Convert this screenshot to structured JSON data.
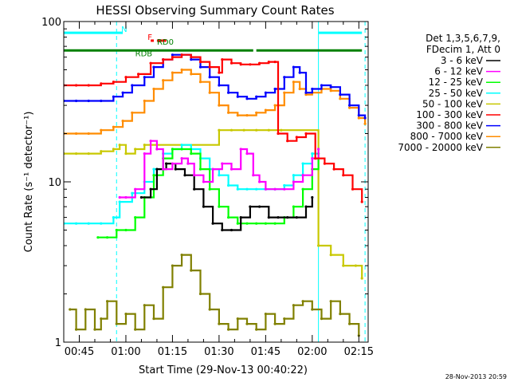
{
  "chart_data": {
    "type": "line",
    "title": "HESSI Observing Summary Count Rates",
    "xlabel": "Start Time (29-Nov-13 00:40:22)",
    "ylabel": "Count Rate (s⁻¹ detector⁻¹)",
    "yscale": "log",
    "ylim": [
      1,
      100
    ],
    "xlim": [
      "00:40",
      "02:18"
    ],
    "x_ticks": [
      "00:45",
      "01:00",
      "01:15",
      "01:30",
      "01:45",
      "02:00",
      "02:15"
    ],
    "y_ticks": [
      "1",
      "10",
      "100"
    ],
    "legend_header": [
      "Det 1,3,5,6,7,9,",
      "FDecim 1, Att 0"
    ],
    "legend_position": "right",
    "timestamp": "28-Nov-2013 20:59",
    "vertical_lines": [
      {
        "time": "00:40",
        "style": "solid",
        "color": "#00ffff"
      },
      {
        "time": "00:57",
        "style": "dashed",
        "color": "#00ffff"
      },
      {
        "time": "02:02",
        "style": "solid",
        "color": "#00ffff"
      },
      {
        "time": "02:17",
        "style": "dashed",
        "color": "#00ffff"
      }
    ],
    "flags": [
      {
        "label": "N",
        "color": "#00ffff",
        "segments": [
          [
            "00:40",
            "00:59"
          ],
          [
            "02:02",
            "02:16"
          ]
        ],
        "y": 85
      },
      {
        "label": "F",
        "color": "#ff0000",
        "segments": [
          [
            "01:08",
            "01:09"
          ],
          [
            "01:10",
            "01:13"
          ]
        ],
        "y": 76
      },
      {
        "label": "RD0",
        "color": "#008000",
        "segments": [
          [
            "00:40",
            "01:41"
          ],
          [
            "01:42",
            "02:16"
          ]
        ],
        "y": 66
      },
      {
        "label": "RDB",
        "color": "#008000",
        "segments": [],
        "y": 60
      },
      {
        "label": "RD0",
        "color": "#008000",
        "segments": [],
        "y": 71
      }
    ],
    "series": [
      {
        "name": "3 - 6 keV",
        "color": "#000000",
        "points": [
          [
            "01:05",
            8
          ],
          [
            "01:08",
            9
          ],
          [
            "01:10",
            12
          ],
          [
            "01:13",
            13
          ],
          [
            "01:16",
            12
          ],
          [
            "01:19",
            11
          ],
          [
            "01:22",
            9
          ],
          [
            "01:25",
            7
          ],
          [
            "01:28",
            5.5
          ],
          [
            "01:31",
            5
          ],
          [
            "01:34",
            5
          ],
          [
            "01:37",
            6
          ],
          [
            "01:40",
            7
          ],
          [
            "01:43",
            7
          ],
          [
            "01:46",
            6
          ],
          [
            "01:49",
            6
          ],
          [
            "01:52",
            6
          ],
          [
            "01:55",
            6
          ],
          [
            "01:58",
            7
          ],
          [
            "02:00",
            8
          ]
        ]
      },
      {
        "name": "6 - 12 keV",
        "color": "#ff00ff",
        "points": [
          [
            "00:58",
            8
          ],
          [
            "01:00",
            8
          ],
          [
            "01:03",
            9
          ],
          [
            "01:06",
            15
          ],
          [
            "01:08",
            18
          ],
          [
            "01:10",
            16
          ],
          [
            "01:12",
            12
          ],
          [
            "01:15",
            13
          ],
          [
            "01:18",
            14
          ],
          [
            "01:20",
            13
          ],
          [
            "01:22",
            11
          ],
          [
            "01:25",
            10
          ],
          [
            "01:28",
            12
          ],
          [
            "01:31",
            13
          ],
          [
            "01:34",
            12
          ],
          [
            "01:37",
            16
          ],
          [
            "01:39",
            15
          ],
          [
            "01:41",
            11
          ],
          [
            "01:43",
            10
          ],
          [
            "01:45",
            9
          ],
          [
            "01:48",
            9
          ],
          [
            "01:51",
            9
          ],
          [
            "01:54",
            10
          ],
          [
            "01:57",
            11
          ],
          [
            "02:00",
            14
          ],
          [
            "02:02",
            16
          ]
        ]
      },
      {
        "name": "12 - 25 keV",
        "color": "#00ff00",
        "points": [
          [
            "00:51",
            4.5
          ],
          [
            "00:54",
            4.5
          ],
          [
            "00:57",
            5
          ],
          [
            "01:00",
            5
          ],
          [
            "01:03",
            6
          ],
          [
            "01:06",
            8
          ],
          [
            "01:09",
            11
          ],
          [
            "01:12",
            14
          ],
          [
            "01:15",
            16
          ],
          [
            "01:18",
            16
          ],
          [
            "01:21",
            15
          ],
          [
            "01:24",
            12
          ],
          [
            "01:27",
            9
          ],
          [
            "01:30",
            7
          ],
          [
            "01:33",
            6
          ],
          [
            "01:36",
            5.5
          ],
          [
            "01:39",
            5.5
          ],
          [
            "01:42",
            5.5
          ],
          [
            "01:45",
            5.5
          ],
          [
            "01:48",
            5.5
          ],
          [
            "01:51",
            6
          ],
          [
            "01:54",
            7
          ],
          [
            "01:57",
            9
          ],
          [
            "02:00",
            12
          ],
          [
            "02:02",
            15
          ]
        ]
      },
      {
        "name": "25 - 50 keV",
        "color": "#00ffff",
        "points": [
          [
            "00:40",
            5.5
          ],
          [
            "00:44",
            5.5
          ],
          [
            "00:48",
            5.5
          ],
          [
            "00:52",
            5.5
          ],
          [
            "00:56",
            6
          ],
          [
            "00:58",
            7.5
          ],
          [
            "01:02",
            8.5
          ],
          [
            "01:06",
            10
          ],
          [
            "01:09",
            12
          ],
          [
            "01:12",
            15
          ],
          [
            "01:15",
            16
          ],
          [
            "01:18",
            17
          ],
          [
            "01:21",
            16
          ],
          [
            "01:24",
            14
          ],
          [
            "01:27",
            12
          ],
          [
            "01:30",
            11
          ],
          [
            "01:33",
            9.5
          ],
          [
            "01:36",
            9
          ],
          [
            "01:39",
            9
          ],
          [
            "01:42",
            9
          ],
          [
            "01:45",
            9
          ],
          [
            "01:48",
            9
          ],
          [
            "01:51",
            9.5
          ],
          [
            "01:54",
            11
          ],
          [
            "01:57",
            13
          ],
          [
            "02:00",
            15
          ],
          [
            "02:02",
            16
          ]
        ]
      },
      {
        "name": "50 - 100 keV",
        "color": "#c8c800",
        "points": [
          [
            "00:40",
            15
          ],
          [
            "00:44",
            15
          ],
          [
            "00:48",
            15
          ],
          [
            "00:52",
            15.5
          ],
          [
            "00:56",
            16
          ],
          [
            "00:58",
            17
          ],
          [
            "01:00",
            15
          ],
          [
            "01:03",
            16
          ],
          [
            "01:06",
            17
          ],
          [
            "01:30",
            21
          ],
          [
            "01:34",
            21
          ],
          [
            "01:38",
            21
          ],
          [
            "01:42",
            21
          ],
          [
            "01:46",
            21
          ],
          [
            "01:50",
            21
          ],
          [
            "02:02",
            4
          ],
          [
            "02:06",
            3.5
          ],
          [
            "02:10",
            3
          ],
          [
            "02:14",
            3
          ],
          [
            "02:16",
            2.5
          ]
        ]
      },
      {
        "name": "100 - 300 keV",
        "color": "#ff0000",
        "points": [
          [
            "00:40",
            40
          ],
          [
            "00:44",
            40
          ],
          [
            "00:48",
            40
          ],
          [
            "00:52",
            41
          ],
          [
            "00:56",
            42
          ],
          [
            "01:00",
            45
          ],
          [
            "01:04",
            47
          ],
          [
            "01:08",
            55
          ],
          [
            "01:12",
            58
          ],
          [
            "01:15",
            60
          ],
          [
            "01:18",
            62
          ],
          [
            "01:21",
            60
          ],
          [
            "01:24",
            56
          ],
          [
            "01:27",
            52
          ],
          [
            "01:30",
            48
          ],
          [
            "01:31",
            58
          ],
          [
            "01:34",
            55
          ],
          [
            "01:37",
            54
          ],
          [
            "01:40",
            54
          ],
          [
            "01:43",
            55
          ],
          [
            "01:46",
            56
          ],
          [
            "01:48",
            56
          ],
          [
            "01:49",
            20
          ],
          [
            "01:52",
            18
          ],
          [
            "01:55",
            19
          ],
          [
            "01:58",
            20
          ],
          [
            "02:01",
            14
          ],
          [
            "02:04",
            13
          ],
          [
            "02:07",
            12
          ],
          [
            "02:10",
            11
          ],
          [
            "02:13",
            9
          ],
          [
            "02:16",
            7.5
          ]
        ]
      },
      {
        "name": "300 - 800 keV",
        "color": "#0000ff",
        "points": [
          [
            "00:40",
            32
          ],
          [
            "00:44",
            32
          ],
          [
            "00:48",
            32
          ],
          [
            "00:52",
            32
          ],
          [
            "00:56",
            34
          ],
          [
            "00:59",
            36
          ],
          [
            "01:02",
            40
          ],
          [
            "01:06",
            45
          ],
          [
            "01:09",
            52
          ],
          [
            "01:12",
            58
          ],
          [
            "01:15",
            62
          ],
          [
            "01:18",
            62
          ],
          [
            "01:21",
            58
          ],
          [
            "01:24",
            52
          ],
          [
            "01:27",
            45
          ],
          [
            "01:30",
            40
          ],
          [
            "01:33",
            36
          ],
          [
            "01:36",
            34
          ],
          [
            "01:39",
            33
          ],
          [
            "01:42",
            34
          ],
          [
            "01:45",
            36
          ],
          [
            "01:48",
            38
          ],
          [
            "01:51",
            45
          ],
          [
            "01:54",
            52
          ],
          [
            "01:56",
            48
          ],
          [
            "01:58",
            36
          ],
          [
            "02:00",
            38
          ],
          [
            "02:03",
            40
          ],
          [
            "02:06",
            39
          ],
          [
            "02:09",
            35
          ],
          [
            "02:12",
            30
          ],
          [
            "02:15",
            26
          ],
          [
            "02:17",
            25
          ]
        ]
      },
      {
        "name": "800 - 7000 keV",
        "color": "#ff8c00",
        "points": [
          [
            "00:40",
            20
          ],
          [
            "00:44",
            20
          ],
          [
            "00:48",
            20
          ],
          [
            "00:52",
            21
          ],
          [
            "00:56",
            22
          ],
          [
            "00:59",
            24
          ],
          [
            "01:02",
            27
          ],
          [
            "01:06",
            32
          ],
          [
            "01:09",
            38
          ],
          [
            "01:12",
            43
          ],
          [
            "01:15",
            48
          ],
          [
            "01:18",
            50
          ],
          [
            "01:21",
            47
          ],
          [
            "01:24",
            42
          ],
          [
            "01:27",
            36
          ],
          [
            "01:30",
            30
          ],
          [
            "01:33",
            27
          ],
          [
            "01:36",
            26
          ],
          [
            "01:39",
            26
          ],
          [
            "01:42",
            27
          ],
          [
            "01:45",
            28
          ],
          [
            "01:48",
            30
          ],
          [
            "01:51",
            36
          ],
          [
            "01:54",
            42
          ],
          [
            "01:56",
            38
          ],
          [
            "01:58",
            35
          ],
          [
            "02:00",
            36
          ],
          [
            "02:03",
            38
          ],
          [
            "02:06",
            37
          ],
          [
            "02:09",
            33
          ],
          [
            "02:12",
            29
          ],
          [
            "02:15",
            25
          ],
          [
            "02:17",
            23
          ]
        ]
      },
      {
        "name": "7000 - 20000 keV",
        "color": "#808000",
        "points": [
          [
            "00:42",
            1.6
          ],
          [
            "00:44",
            1.2
          ],
          [
            "00:47",
            1.6
          ],
          [
            "00:50",
            1.2
          ],
          [
            "00:52",
            1.4
          ],
          [
            "00:54",
            1.8
          ],
          [
            "00:57",
            1.3
          ],
          [
            "01:00",
            1.5
          ],
          [
            "01:03",
            1.2
          ],
          [
            "01:06",
            1.7
          ],
          [
            "01:09",
            1.4
          ],
          [
            "01:12",
            2.2
          ],
          [
            "01:15",
            3
          ],
          [
            "01:18",
            3.5
          ],
          [
            "01:21",
            2.8
          ],
          [
            "01:24",
            2
          ],
          [
            "01:27",
            1.6
          ],
          [
            "01:30",
            1.3
          ],
          [
            "01:33",
            1.2
          ],
          [
            "01:36",
            1.4
          ],
          [
            "01:39",
            1.3
          ],
          [
            "01:42",
            1.2
          ],
          [
            "01:45",
            1.5
          ],
          [
            "01:48",
            1.3
          ],
          [
            "01:51",
            1.4
          ],
          [
            "01:54",
            1.7
          ],
          [
            "01:57",
            1.8
          ],
          [
            "02:00",
            1.6
          ],
          [
            "02:03",
            1.4
          ],
          [
            "02:06",
            1.8
          ],
          [
            "02:09",
            1.5
          ],
          [
            "02:12",
            1.3
          ],
          [
            "02:15",
            1.1
          ]
        ]
      }
    ]
  }
}
